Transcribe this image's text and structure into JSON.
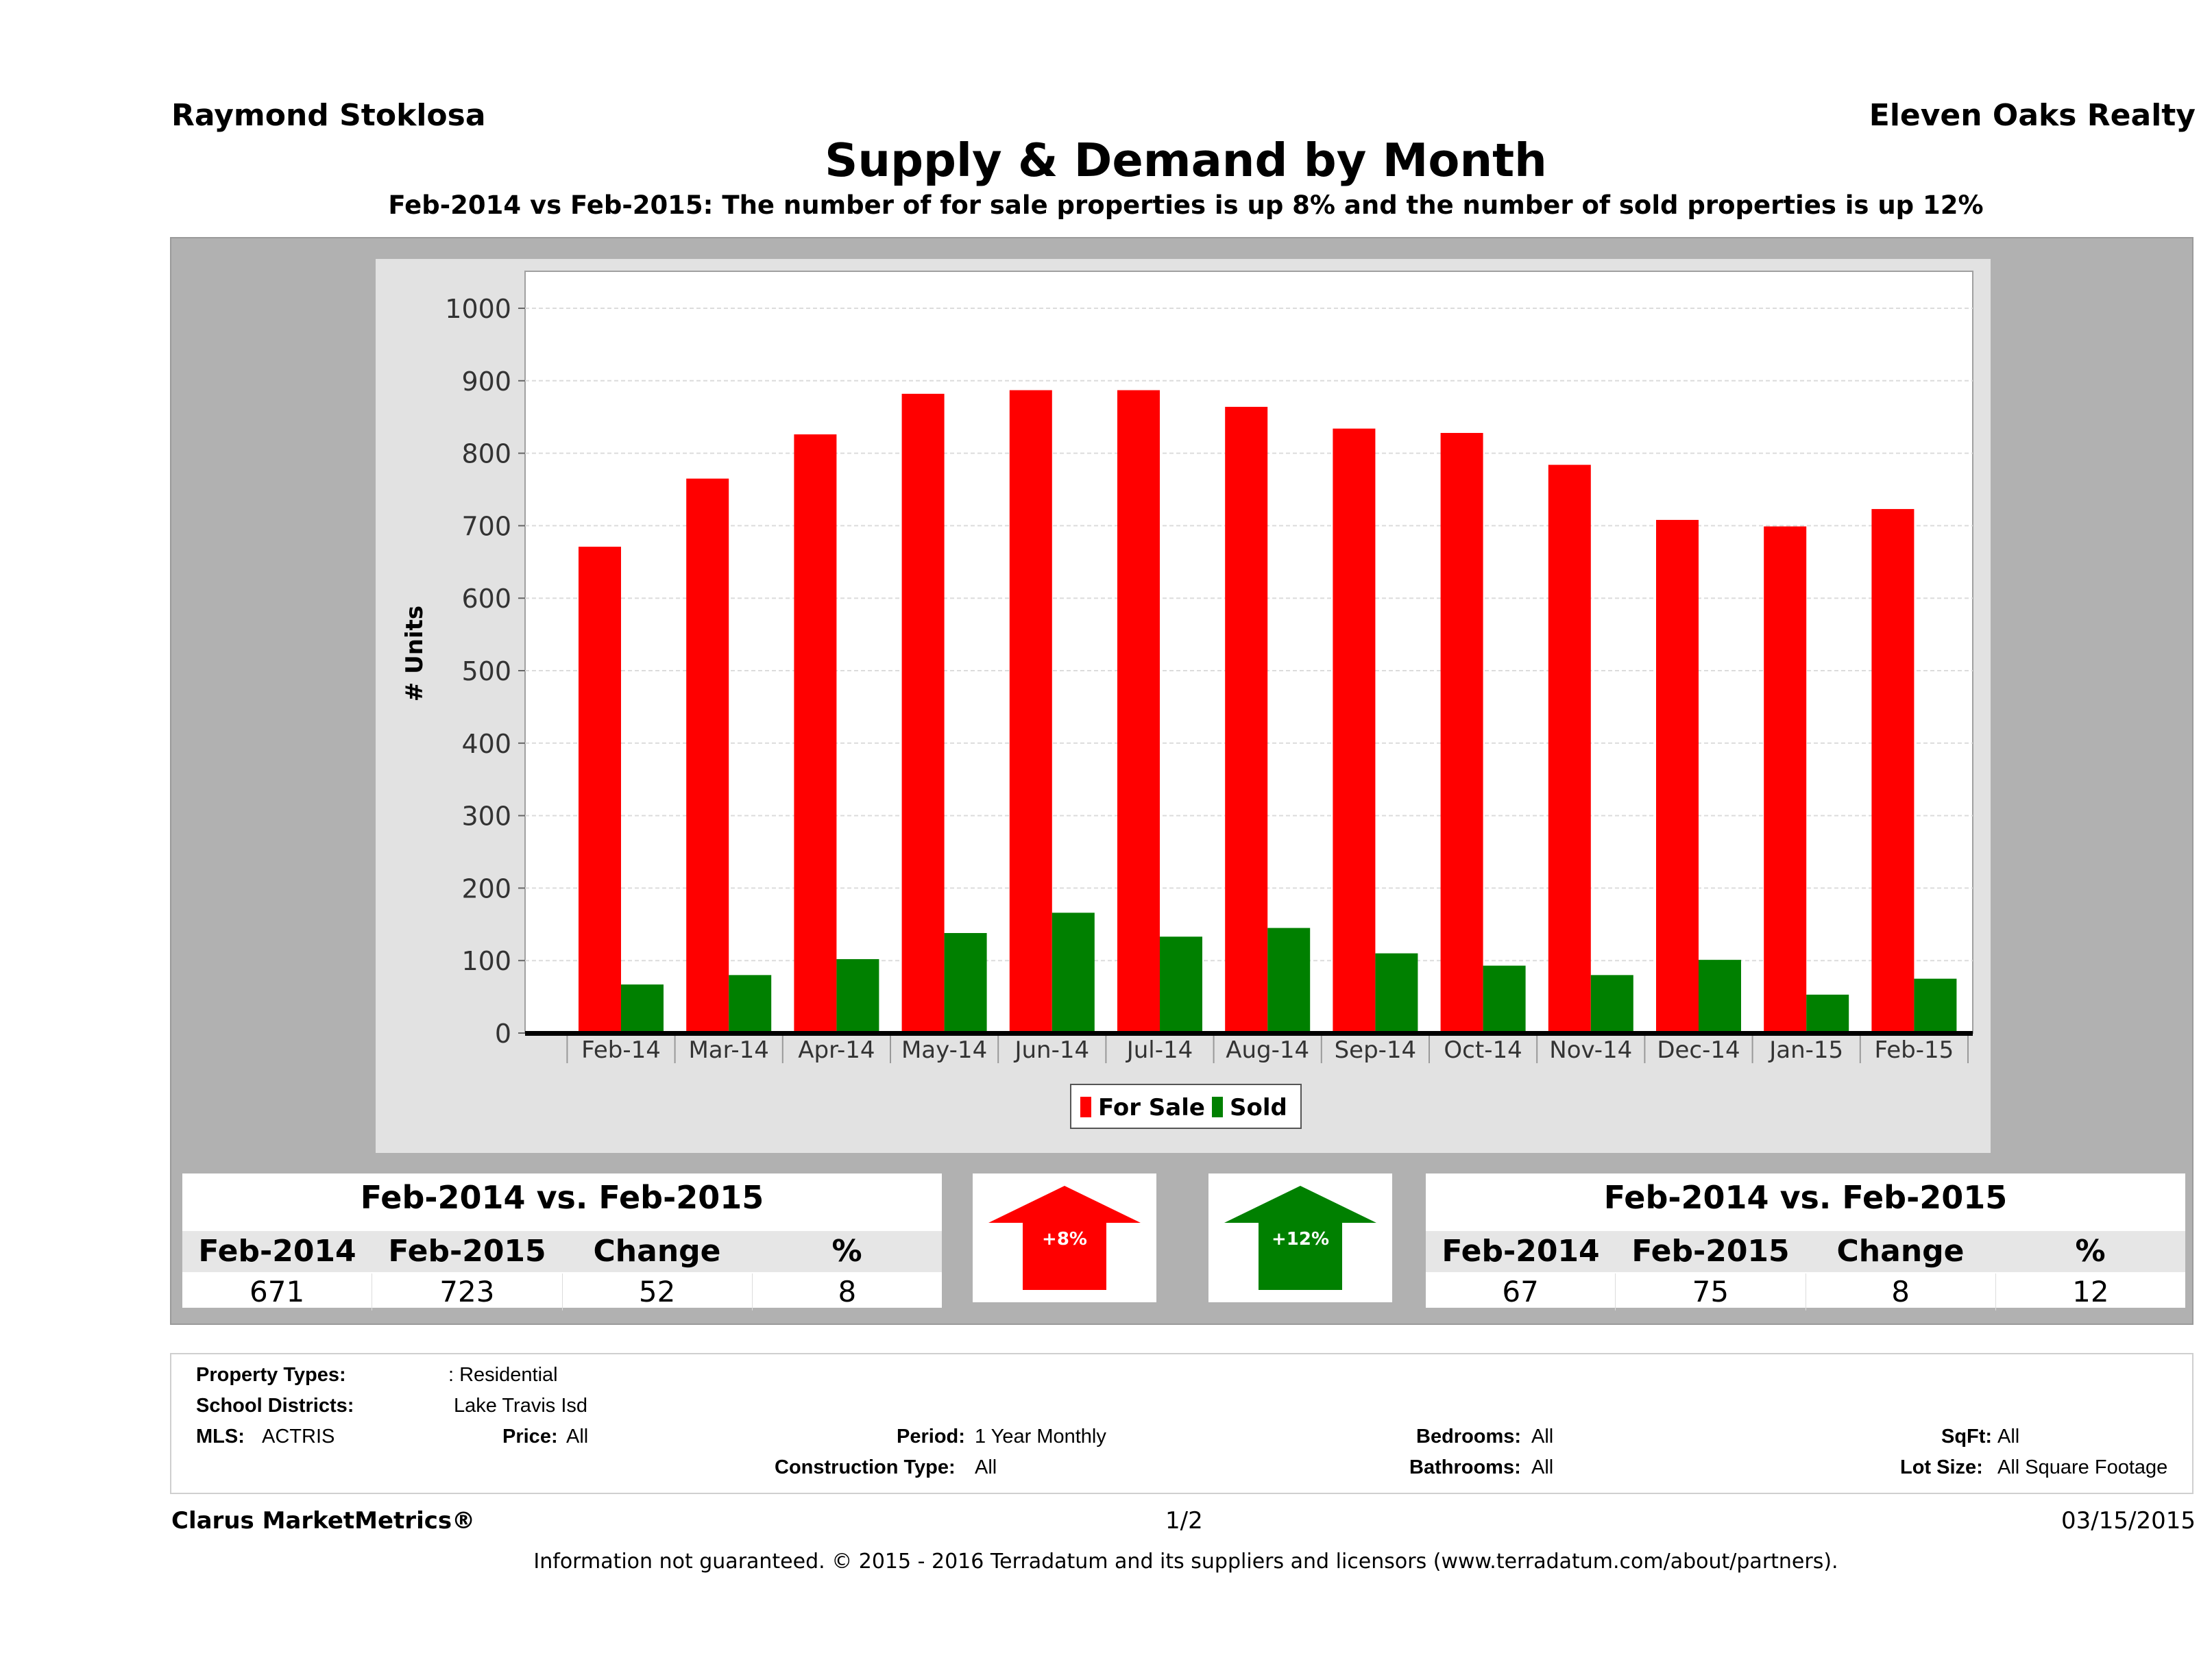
{
  "header": {
    "agent": "Raymond Stoklosa",
    "company": "Eleven Oaks Realty",
    "title": "Supply & Demand by Month",
    "subtitle": "Feb-2014 vs Feb-2015: The number of for sale properties is up 8% and the number of sold properties is up 12%"
  },
  "chart_data": {
    "type": "bar",
    "categories": [
      "Feb-14",
      "Mar-14",
      "Apr-14",
      "May-14",
      "Jun-14",
      "Jul-14",
      "Aug-14",
      "Sep-14",
      "Oct-14",
      "Nov-14",
      "Dec-14",
      "Jan-15",
      "Feb-15"
    ],
    "series": [
      {
        "name": "For Sale",
        "color": "#ff0000",
        "values": [
          671,
          765,
          826,
          882,
          887,
          887,
          864,
          834,
          828,
          784,
          708,
          699,
          723
        ]
      },
      {
        "name": "Sold",
        "color": "#008000",
        "values": [
          67,
          80,
          102,
          138,
          166,
          133,
          145,
          110,
          93,
          80,
          101,
          53,
          75
        ]
      }
    ],
    "ylabel": "# Units",
    "xlabel": "",
    "ylim": [
      0,
      1000
    ],
    "yticks": [
      0,
      100,
      200,
      300,
      400,
      500,
      600,
      700,
      800,
      900,
      1000
    ],
    "grid": true,
    "legend": "bottom-center"
  },
  "stats": {
    "for_sale": {
      "title": "Feb-2014 vs. Feb-2015",
      "headers": [
        "Feb-2014",
        "Feb-2015",
        "Change",
        "%"
      ],
      "values": [
        "671",
        "723",
        "52",
        "8"
      ],
      "arrow_label": "+8%",
      "color": "#ff0000"
    },
    "sold": {
      "title": "Feb-2014 vs. Feb-2015",
      "headers": [
        "Feb-2014",
        "Feb-2015",
        "Change",
        "%"
      ],
      "values": [
        "67",
        "75",
        "8",
        "12"
      ],
      "arrow_label": "+12%",
      "color": "#008000"
    }
  },
  "filters": {
    "property_types_label": "Property Types:",
    "property_types_value": ": Residential",
    "school_districts_label": "School Districts:",
    "school_districts_value": "Lake Travis Isd",
    "mls_label": "MLS:",
    "mls_value": "ACTRIS",
    "price_label": "Price:",
    "price_value": "All",
    "period_label": "Period:",
    "period_value": "1 Year Monthly",
    "construction_label": "Construction Type:",
    "construction_value": "All",
    "bedrooms_label": "Bedrooms:",
    "bedrooms_value": "All",
    "bathrooms_label": "Bathrooms:",
    "bathrooms_value": "All",
    "sqft_label": "SqFt:",
    "sqft_value": "All",
    "lot_label": "Lot Size:",
    "lot_value": "All Square Footage"
  },
  "footer": {
    "brand": "Clarus MarketMetrics®",
    "page": "1/2",
    "date": "03/15/2015",
    "disclaimer": "Information not guaranteed. © 2015 - 2016 Terradatum and its suppliers and licensors (www.terradatum.com/about/partners)."
  }
}
